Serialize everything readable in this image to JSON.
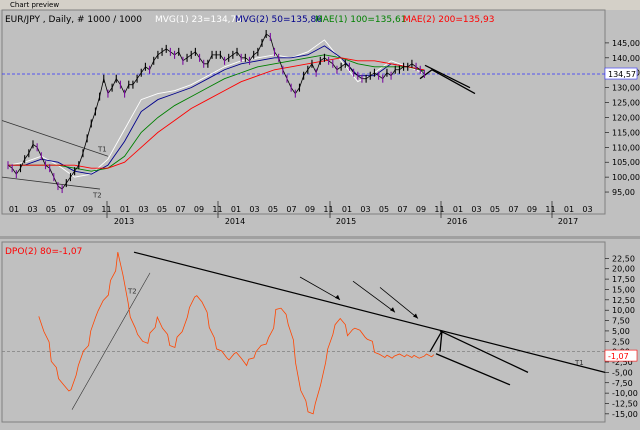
{
  "window": {
    "title": "Chart preview"
  },
  "chart_data": [
    {
      "type": "line",
      "panel": "price",
      "title": "",
      "legend": [
        {
          "text": "EUR/JPY , Daily, # 1000 / 1000",
          "color": "#000000"
        },
        {
          "text": "MVG(1) 23=134,79",
          "color": "#ffffff"
        },
        {
          "text": "MVG(2) 50=135,86",
          "color": "#00008b"
        },
        {
          "text": "MAE(1) 100=135,61",
          "color": "#008000"
        },
        {
          "text": "MAE(2) 200=135,93",
          "color": "#ff0000"
        }
      ],
      "y_ticks": [
        "145,00",
        "140,00",
        "135,00",
        "130,00",
        "125,00",
        "120,00",
        "115,00",
        "110,00",
        "105,00",
        "100,00",
        "95,00"
      ],
      "ylim": [
        93,
        150
      ],
      "last_price": "134,57",
      "x_month_labels": [
        "01",
        "03",
        "05",
        "07",
        "09",
        "11",
        "01",
        "03",
        "05",
        "07",
        "09",
        "11",
        "01",
        "03",
        "05",
        "07",
        "09",
        "11",
        "01",
        "03",
        "05",
        "07",
        "09",
        "11",
        "01",
        "03",
        "05",
        "07",
        "09",
        "11",
        "01",
        "03"
      ],
      "x_year_labels": [
        "2013",
        "2014",
        "2015",
        "2016",
        "2017"
      ],
      "trendline_labels": [
        "T1",
        "T2"
      ],
      "series": [
        {
          "name": "EUR/JPY",
          "color": "#000000",
          "x": [
            0,
            0.5,
            1,
            1.5,
            2,
            2.5,
            3,
            3.5,
            4,
            4.5,
            5,
            5.5,
            6,
            6.5,
            7,
            7.5,
            8,
            8.5,
            9,
            9.5,
            10,
            10.5,
            11,
            11.5,
            12,
            12.5,
            13,
            13.5,
            14,
            14.5,
            15,
            15.5,
            16,
            16.5,
            17,
            17.5,
            18,
            18.5,
            19,
            19.5,
            20,
            20.5,
            21,
            21.5,
            22,
            22.5,
            23,
            23.5,
            24,
            24.5,
            25,
            25.5,
            26,
            26.5,
            27,
            27.5,
            28,
            28.5,
            29,
            29.5,
            30,
            30.5,
            31,
            31.5,
            32,
            32.5,
            33,
            33.5,
            34,
            34.5,
            35,
            35.5,
            36,
            36.5,
            37,
            37.5,
            38,
            38.5,
            39,
            39.5,
            40,
            40.5,
            41,
            41.5,
            42,
            42.5,
            43,
            43.5,
            44,
            44.5,
            45,
            45.5,
            46,
            46.5,
            47,
            47.5,
            48,
            48.5,
            49,
            49.5,
            50
          ],
          "values": [
            104,
            103,
            101,
            103,
            106,
            108,
            111,
            110,
            107,
            104,
            103,
            100,
            97,
            96,
            98,
            100,
            102,
            104,
            108,
            113,
            118,
            122,
            127,
            133,
            128,
            130,
            133,
            131,
            128,
            131,
            131,
            133,
            135,
            137,
            136,
            139,
            141,
            142,
            143,
            142,
            141,
            142,
            139,
            140,
            141,
            142,
            140,
            138,
            138,
            141,
            141,
            141,
            139,
            140,
            141,
            142,
            140,
            140,
            139,
            141,
            142,
            145,
            148,
            147,
            142,
            140,
            136,
            133,
            130,
            128,
            130,
            134,
            136,
            138,
            135,
            139,
            140,
            139,
            138,
            136,
            137,
            138,
            137,
            135,
            134,
            133,
            133,
            134,
            135,
            134,
            133,
            135,
            134,
            136,
            136,
            137,
            137,
            138,
            137,
            136,
            134.57
          ]
        },
        {
          "name": "MVG(1) 23",
          "color": "#ffffff",
          "x": [
            0,
            2,
            4,
            6,
            8,
            10,
            12,
            14,
            16,
            18,
            20,
            22,
            24,
            26,
            28,
            30,
            32,
            34,
            36,
            38,
            40,
            42,
            44,
            46,
            48,
            50
          ],
          "values": [
            104,
            105,
            107,
            104,
            100,
            101,
            106,
            116,
            126,
            128,
            129,
            131,
            134,
            137,
            139,
            140,
            141,
            140,
            142,
            146,
            139,
            132,
            135,
            139,
            137,
            134.79
          ]
        },
        {
          "name": "MVG(2) 50",
          "color": "#00008b",
          "x": [
            0,
            2,
            4,
            6,
            8,
            10,
            12,
            14,
            16,
            18,
            20,
            22,
            24,
            26,
            28,
            30,
            32,
            34,
            36,
            38,
            40,
            42,
            44,
            46,
            48,
            50
          ],
          "values": [
            104,
            104,
            106,
            105,
            102,
            101,
            104,
            112,
            122,
            126,
            128,
            130,
            133,
            136,
            138,
            139,
            140,
            140,
            141,
            144,
            140,
            134,
            134,
            138,
            137,
            135.86
          ]
        },
        {
          "name": "MAE(1) 100",
          "color": "#008000",
          "x": [
            0,
            2,
            4,
            6,
            8,
            10,
            12,
            14,
            16,
            18,
            20,
            22,
            24,
            26,
            28,
            30,
            32,
            34,
            36,
            38,
            40,
            42,
            44,
            46,
            48,
            50
          ],
          "values": [
            104,
            104,
            104,
            104,
            103,
            102,
            103,
            107,
            115,
            120,
            124,
            127,
            130,
            133,
            135,
            137,
            138,
            139,
            140,
            141,
            140,
            138,
            137,
            137,
            137,
            135.61
          ]
        },
        {
          "name": "MAE(2) 200",
          "color": "#ff0000",
          "x": [
            0,
            2,
            4,
            6,
            8,
            10,
            12,
            14,
            16,
            18,
            20,
            22,
            24,
            26,
            28,
            30,
            32,
            34,
            36,
            38,
            40,
            42,
            44,
            46,
            48,
            50
          ],
          "values": [
            104,
            104,
            104,
            104,
            104,
            103,
            103,
            105,
            110,
            115,
            119,
            123,
            126,
            129,
            132,
            134,
            136,
            137,
            138,
            139,
            140,
            139,
            139,
            138,
            137,
            135.93
          ]
        }
      ]
    },
    {
      "type": "line",
      "panel": "oscillator",
      "title": "",
      "legend": [
        {
          "text": "DPO(2) 80=-1,07",
          "color": "#ff0000"
        }
      ],
      "y_ticks": [
        "22,50",
        "20,00",
        "17,50",
        "15,00",
        "12,50",
        "10,00",
        "7,50",
        "5,00",
        "2,50",
        "0,00",
        "-2,50",
        "-5,00",
        "-7,50",
        "-10,00",
        "-12,50",
        "-15,00"
      ],
      "ylim": [
        -16,
        25
      ],
      "last_value": "-1,07",
      "trendline_labels": [
        "T1",
        "T2"
      ],
      "series": [
        {
          "name": "DPO(2) 80",
          "color": "#ff4500",
          "x": [
            0,
            0.5,
            1,
            1.5,
            2,
            2.5,
            3,
            3.5,
            4,
            4.5,
            5,
            5.5,
            6,
            6.5,
            7,
            7.5,
            8,
            8.5,
            9,
            9.5,
            10,
            10.5,
            11,
            11.5,
            12,
            12.5,
            13,
            13.5,
            14,
            14.5,
            15,
            15.5,
            16,
            16.5,
            17,
            17.5,
            18,
            18.5,
            19,
            19.5,
            20,
            20.5,
            21,
            21.5,
            22,
            22.5,
            23,
            23.5,
            24,
            24.5,
            25,
            25.5,
            26,
            26.5,
            27,
            27.5,
            28,
            28.5,
            29,
            29.5,
            30,
            30.5,
            31,
            31.5,
            32,
            32.5,
            33,
            33.5,
            34,
            34.5,
            35,
            35.5,
            36,
            36.5,
            37,
            37.5,
            38,
            38.5,
            39,
            39.5,
            40,
            40.5,
            41,
            41.5,
            42,
            42.5,
            43,
            43.5,
            44,
            44.5,
            45,
            45.5,
            46,
            46.5,
            47,
            47.5,
            48,
            48.5,
            49,
            49.5,
            50
          ],
          "values": [
            8,
            5,
            2,
            -2,
            -4,
            -6,
            -8,
            -10,
            -9,
            -6,
            -3,
            0,
            2,
            5,
            8,
            10,
            12,
            14,
            17,
            20,
            24,
            18,
            12,
            8,
            6,
            4,
            3,
            2,
            4,
            6,
            8,
            6,
            4,
            2,
            1,
            3,
            5,
            8,
            11,
            13,
            14,
            12,
            9,
            6,
            3,
            1,
            0,
            -1,
            -2,
            -1,
            0,
            -2,
            -3,
            -2,
            -1,
            0,
            1,
            2,
            3,
            6,
            10,
            11,
            9,
            6,
            3,
            -3,
            -9,
            -12,
            -14,
            -15,
            -13,
            -8,
            -3,
            1,
            4,
            7,
            8,
            6,
            4,
            5,
            6,
            5,
            4,
            3,
            2,
            0,
            -1,
            -1.07,
            -1,
            -1.07,
            -1.07,
            -1.07,
            -1.07,
            -1.07,
            -1.07,
            -1.07,
            -1.07,
            -1.07,
            -1.07,
            -1.07,
            -1.07
          ]
        }
      ]
    }
  ]
}
